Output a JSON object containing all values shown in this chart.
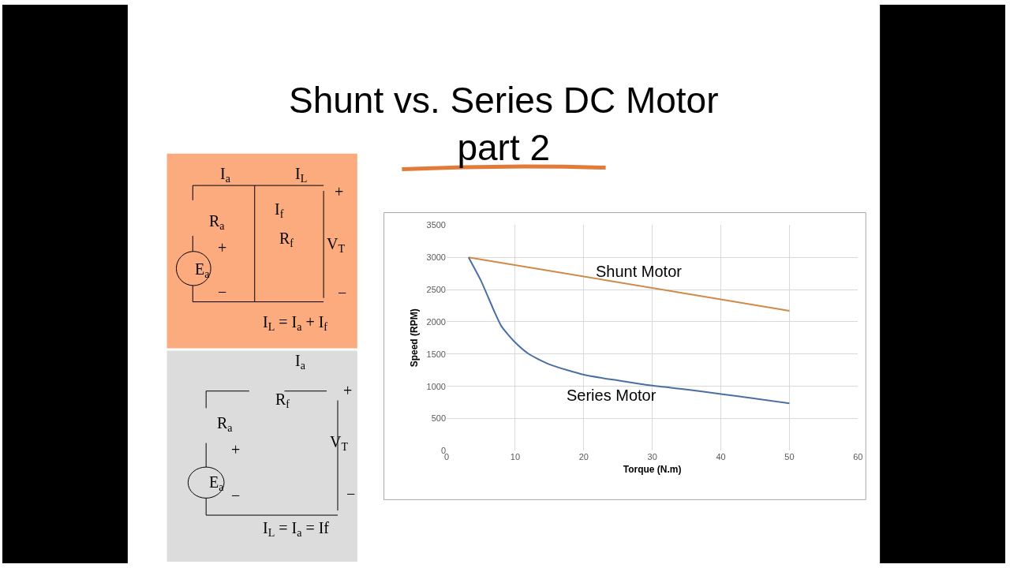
{
  "chart_data": {
    "type": "line",
    "title": "Shunt vs. Series DC Motor\npart 2",
    "xlabel": "Torque (N.m)",
    "ylabel": "Speed (RPM)",
    "xlim": [
      0,
      60
    ],
    "xticks": [
      0,
      10,
      20,
      30,
      40,
      50,
      60
    ],
    "ylim": [
      0,
      3500
    ],
    "yticks": [
      0,
      500,
      1000,
      1500,
      2000,
      2500,
      3000,
      3500
    ],
    "grid": true,
    "legend": false,
    "marker": "none",
    "line_style": "solid",
    "series": [
      {
        "name": "Shunt Motor",
        "color": "#d0894a",
        "x": [
          3.2,
          50
        ],
        "values": [
          3000,
          2170
        ]
      },
      {
        "name": "Series Motor",
        "color": "#4a6fa5",
        "x": [
          3.2,
          5,
          7,
          8,
          10,
          12,
          15,
          20,
          25,
          30,
          35,
          40,
          45,
          50
        ],
        "values": [
          3000,
          2640,
          2150,
          1930,
          1680,
          1500,
          1340,
          1180,
          1090,
          1010,
          950,
          880,
          810,
          735
        ]
      }
    ],
    "annotations": [
      "I$_{a}$",
      "I$_{L}$",
      "I$_{f}$",
      "R$_{a}$",
      "R$_{f}$",
      "V$_{T}$",
      "E$_{a}$",
      "+",
      "−",
      "+",
      "−",
      "I$_{L}$ = I$_{a}$ + I$_{f}$",
      "I$_{a}$",
      "R$_{f}$",
      "R$_{a}$",
      "V$_{T}$",
      "E$_{a}$",
      "+",
      "−",
      "+",
      "−",
      "I$_{L}$ = I$_{a}$ = If"
    ]
  }
}
